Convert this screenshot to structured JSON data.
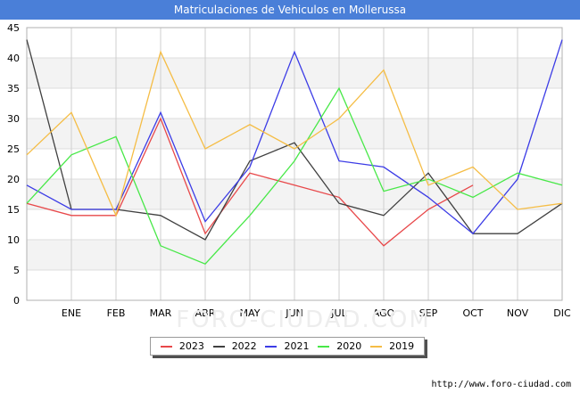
{
  "header": {
    "title": "Matriculaciones de Vehiculos en Mollerussa"
  },
  "source": "http://www.foro-ciudad.com",
  "watermark": "FORO-CIUDAD.COM",
  "chart_data": {
    "type": "line",
    "title": "Matriculaciones de Vehiculos en Mollerussa",
    "xlabel": "",
    "ylabel": "",
    "categories": [
      "",
      "ENE",
      "FEB",
      "MAR",
      "ABR",
      "MAY",
      "JUN",
      "JUL",
      "AGO",
      "SEP",
      "OCT",
      "NOV",
      "DIC"
    ],
    "ylim": [
      0,
      45
    ],
    "yticks": [
      0,
      5,
      10,
      15,
      20,
      25,
      30,
      35,
      40,
      45
    ],
    "grid": true,
    "legend_position": "bottom",
    "series": [
      {
        "name": "2023",
        "color": "#e8484a",
        "values": [
          16,
          14,
          14,
          30,
          11,
          21,
          19,
          17,
          9,
          15,
          19,
          null,
          null
        ]
      },
      {
        "name": "2022",
        "color": "#404040",
        "values": [
          43,
          15,
          15,
          14,
          10,
          23,
          26,
          16,
          14,
          21,
          11,
          11,
          16
        ]
      },
      {
        "name": "2021",
        "color": "#3c3ce6",
        "values": [
          19,
          15,
          15,
          31,
          13,
          22,
          41,
          23,
          22,
          17,
          11,
          20,
          43
        ]
      },
      {
        "name": "2020",
        "color": "#48e848",
        "values": [
          16,
          24,
          27,
          9,
          6,
          14,
          23,
          35,
          18,
          20,
          17,
          21,
          19
        ]
      },
      {
        "name": "2019",
        "color": "#f5bd45",
        "values": [
          24,
          31,
          14,
          41,
          25,
          29,
          25,
          30,
          38,
          19,
          22,
          15,
          16
        ]
      }
    ]
  }
}
